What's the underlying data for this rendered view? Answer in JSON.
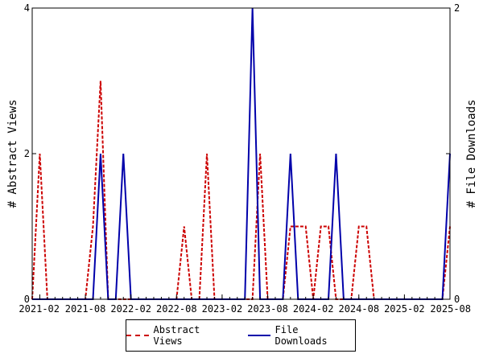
{
  "chart_data": {
    "type": "line",
    "x": [
      "2021-01",
      "2021-02",
      "2021-03",
      "2021-04",
      "2021-05",
      "2021-06",
      "2021-07",
      "2021-08",
      "2021-09",
      "2021-10",
      "2021-11",
      "2021-12",
      "2022-01",
      "2022-02",
      "2022-03",
      "2022-04",
      "2022-05",
      "2022-06",
      "2022-07",
      "2022-08",
      "2022-09",
      "2022-10",
      "2022-11",
      "2022-12",
      "2023-01",
      "2023-02",
      "2023-03",
      "2023-04",
      "2023-05",
      "2023-06",
      "2023-07",
      "2023-08",
      "2023-09",
      "2023-10",
      "2023-11",
      "2023-12",
      "2024-01",
      "2024-02",
      "2024-03",
      "2024-04",
      "2024-05",
      "2024-06",
      "2024-07",
      "2024-08",
      "2024-09",
      "2024-10",
      "2024-11",
      "2024-12",
      "2025-01",
      "2025-02",
      "2025-03",
      "2025-04",
      "2025-05",
      "2025-06",
      "2025-07",
      "2025-08"
    ],
    "x_tick_labels": [
      "2021-02",
      "2021-08",
      "2022-02",
      "2022-08",
      "2023-02",
      "2023-08",
      "2024-02",
      "2024-08",
      "2025-02",
      "2025-08"
    ],
    "series": [
      {
        "name": "Abstract Views",
        "axis": "left",
        "color": "#cc0000",
        "style": "dashed",
        "values": [
          0,
          2,
          0,
          0,
          0,
          0,
          0,
          0,
          1,
          3,
          0,
          0,
          0,
          0,
          0,
          0,
          0,
          0,
          0,
          0,
          1,
          0,
          0,
          2,
          0,
          0,
          0,
          0,
          0,
          0,
          2,
          0,
          0,
          0,
          1,
          1,
          1,
          0,
          1,
          1,
          0,
          0,
          0,
          1,
          1,
          0,
          0,
          0,
          0,
          0,
          0,
          0,
          0,
          0,
          0,
          1
        ]
      },
      {
        "name": "File Downloads",
        "axis": "right",
        "color": "#0000aa",
        "style": "solid",
        "values": [
          0,
          0,
          0,
          0,
          0,
          0,
          0,
          0,
          0,
          1,
          0,
          0,
          1,
          0,
          0,
          0,
          0,
          0,
          0,
          0,
          0,
          0,
          0,
          0,
          0,
          0,
          0,
          0,
          0,
          2,
          0,
          0,
          0,
          0,
          1,
          0,
          0,
          0,
          0,
          0,
          1,
          0,
          0,
          0,
          0,
          0,
          0,
          0,
          0,
          0,
          0,
          0,
          0,
          0,
          0,
          1
        ]
      }
    ],
    "ylabel": "# Abstract Views",
    "y2label": "# File Downloads",
    "ylim": [
      0,
      4
    ],
    "y2lim": [
      0,
      2
    ],
    "yticks": [
      "0",
      "2",
      "4"
    ],
    "y2ticks": [
      "0",
      "1",
      "2"
    ],
    "y2ticks_shown": [
      "0",
      "2"
    ],
    "grid": false,
    "legend_position": "bottom"
  }
}
